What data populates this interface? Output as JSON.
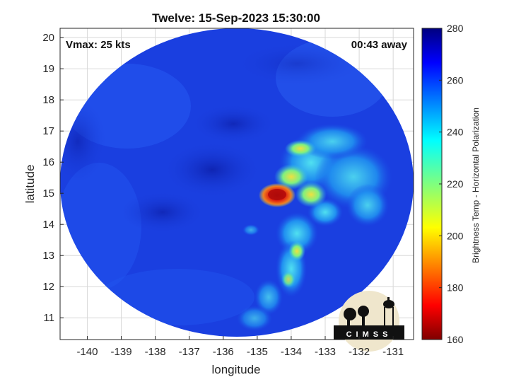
{
  "title": "Twelve: 15-Sep-2023 15:30:00",
  "vmax_label": "Vmax: 25 kts",
  "time_away": "00:43 away",
  "xlabel": "longitude",
  "ylabel": "latitude",
  "colorbar_label": "Brightness Temp - Horizontal Polarization",
  "logo_text": "CIMSS",
  "x_ticks": [
    "-140",
    "-139",
    "-138",
    "-137",
    "-136",
    "-135",
    "-134",
    "-133",
    "-132",
    "-131"
  ],
  "y_ticks": [
    "11",
    "12",
    "13",
    "14",
    "15",
    "16",
    "17",
    "18",
    "19",
    "20"
  ],
  "colorbar_ticks": [
    "160",
    "180",
    "200",
    "220",
    "240",
    "260",
    "280"
  ],
  "map_data": {
    "lon_range": [
      -140.8,
      -130.4
    ],
    "lat_range": [
      10.3,
      20.3
    ],
    "colorbar_range": [
      160,
      280
    ],
    "colormap": "jet",
    "colors": {
      "background_blue": "#1a3fe0",
      "core_red": "#d01010",
      "warm_yellow": "#f0e030",
      "cyan": "#30d0f0",
      "dark_navy": "#0a1a8c"
    },
    "warmest_feature": {
      "lon": -134.6,
      "lat": 14.9,
      "approx_temp_k": 175
    }
  }
}
